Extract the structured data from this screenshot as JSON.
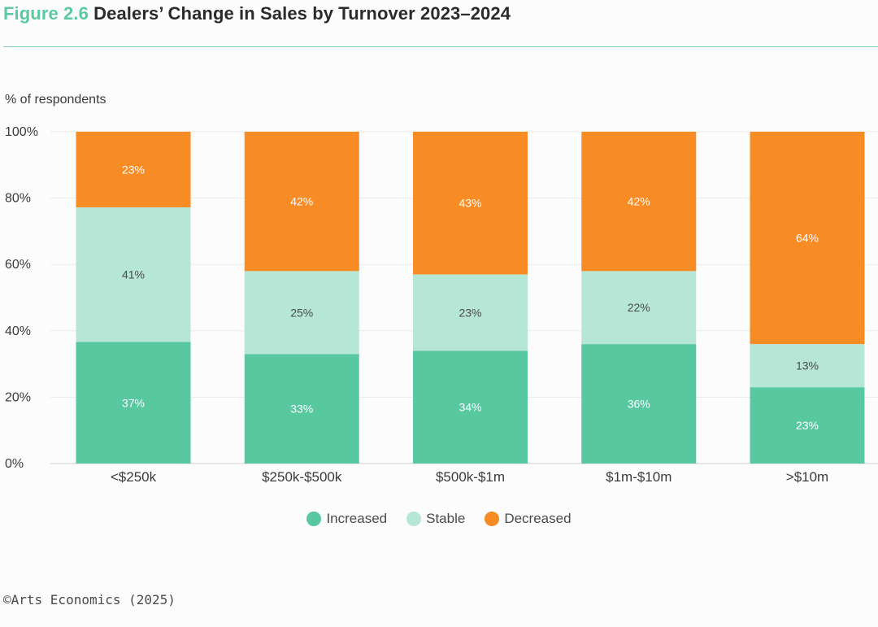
{
  "header": {
    "figure_label": "Figure 2.6",
    "title": "Dealers’ Change in Sales by Turnover 2023–2024"
  },
  "source": "©Arts Economics (2025)",
  "colors": {
    "increased": "#57c89f",
    "stable": "#b6e6d5",
    "decreased": "#f78b24",
    "grid": "#e9e9e9",
    "axis": "#cfcfcf"
  },
  "chart_data": {
    "type": "bar",
    "stacked": true,
    "ylabel": "% of respondents",
    "ylim": [
      0,
      100
    ],
    "yticks": [
      "0%",
      "20%",
      "40%",
      "60%",
      "80%",
      "100%"
    ],
    "categories": [
      "<$250k",
      "$250k-$500k",
      "$500k-$1m",
      "$1m-$10m",
      ">$10m"
    ],
    "series": [
      {
        "name": "Increased",
        "values": [
          37,
          33,
          34,
          36,
          23
        ],
        "labels": [
          "37%",
          "33%",
          "34%",
          "36%",
          "23%"
        ]
      },
      {
        "name": "Stable",
        "values": [
          41,
          25,
          23,
          22,
          13
        ],
        "labels": [
          "41%",
          "25%",
          "23%",
          "22%",
          "13%"
        ]
      },
      {
        "name": "Decreased",
        "values": [
          23,
          42,
          43,
          42,
          64
        ],
        "labels": [
          "23%",
          "42%",
          "43%",
          "42%",
          "64%"
        ]
      }
    ],
    "legend_position": "bottom",
    "grid": true
  }
}
